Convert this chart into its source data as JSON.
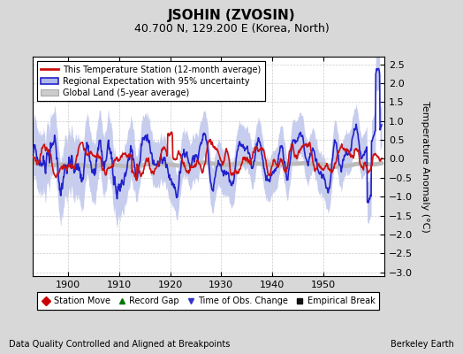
{
  "title": "JSOHIN (ZVOSIN)",
  "subtitle": "40.700 N, 129.200 E (Korea, North)",
  "xlabel_left": "Data Quality Controlled and Aligned at Breakpoints",
  "xlabel_right": "Berkeley Earth",
  "ylabel": "Temperature Anomaly (°C)",
  "xlim": [
    1893,
    1962
  ],
  "ylim": [
    -3.1,
    2.7
  ],
  "yticks": [
    -3,
    -2.5,
    -2,
    -1.5,
    -1,
    -0.5,
    0,
    0.5,
    1,
    1.5,
    2,
    2.5
  ],
  "xticks": [
    1900,
    1910,
    1920,
    1930,
    1940,
    1950
  ],
  "plot_bg": "#ffffff",
  "fig_bg": "#d8d8d8",
  "legend_items": [
    {
      "label": "This Temperature Station (12-month average)",
      "color": "#cc0000"
    },
    {
      "label": "Regional Expectation with 95% uncertainty",
      "color": "#3333cc"
    },
    {
      "label": "Global Land (5-year average)",
      "color": "#aaaaaa"
    }
  ],
  "marker_items": [
    {
      "label": "Station Move",
      "color": "#cc0000",
      "marker": "D"
    },
    {
      "label": "Record Gap",
      "color": "#007700",
      "marker": "^"
    },
    {
      "label": "Time of Obs. Change",
      "color": "#3333cc",
      "marker": "v"
    },
    {
      "label": "Empirical Break",
      "color": "#111111",
      "marker": "s"
    }
  ]
}
